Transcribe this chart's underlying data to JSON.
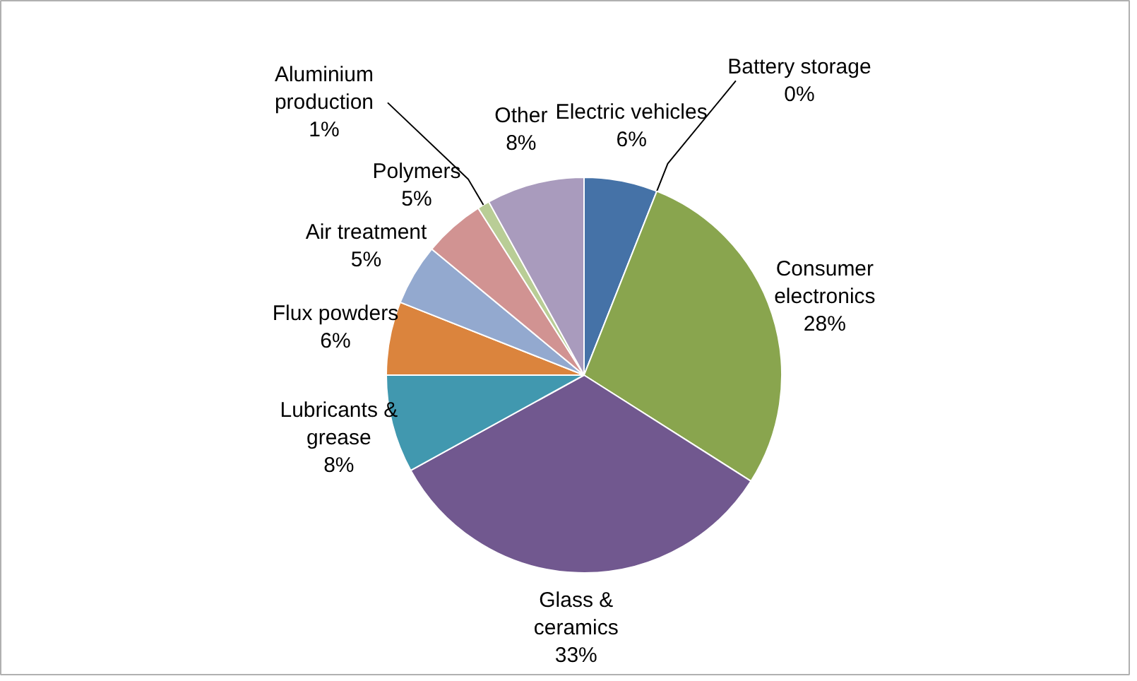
{
  "chart_data": {
    "type": "pie",
    "categories": [
      "Electric vehicles",
      "Battery storage",
      "Consumer electronics",
      "Glass & ceramics",
      "Lubricants & grease",
      "Flux powders",
      "Air treatment",
      "Polymers",
      "Aluminium production",
      "Other"
    ],
    "values": [
      6,
      0,
      28,
      33,
      8,
      6,
      5,
      5,
      1,
      8
    ],
    "colors": [
      "#4572a7",
      "#aa4643",
      "#89a54e",
      "#71588f",
      "#4198af",
      "#db843d",
      "#93a9cf",
      "#d19392",
      "#b9cd96",
      "#a99bbd"
    ],
    "value_labels": [
      "6%",
      "0%",
      "28%",
      "33%",
      "8%",
      "6%",
      "5%",
      "5%",
      "1%",
      "8%"
    ]
  }
}
